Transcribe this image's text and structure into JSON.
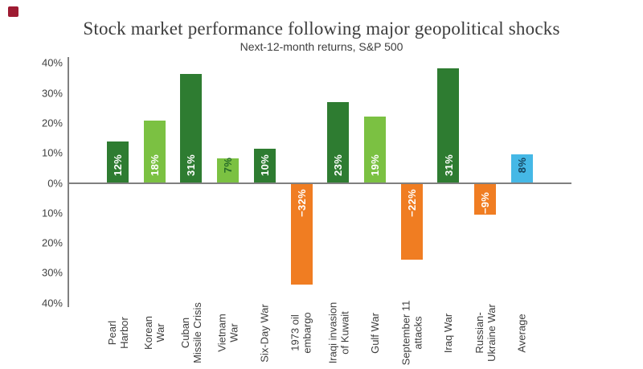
{
  "brand": {
    "logo_color": "#9e1b32"
  },
  "palette": {
    "dark_green": "#2e7c31",
    "light_green": "#7bc142",
    "orange": "#f07d22",
    "blue": "#45b8e6",
    "axis_gray": "#808080",
    "text_gray": "#3d3d3d"
  },
  "chart_data": {
    "type": "bar",
    "title": "Stock market performance following major geopolitical shocks",
    "subtitle": "Next-12-month returns, S&P 500",
    "ylim": [
      -40,
      40
    ],
    "grid": false,
    "legend": false,
    "y_tick_labels": [
      "40%",
      "30%",
      "20%",
      "10%",
      "0%",
      "10%",
      "20%",
      "30%",
      "40%"
    ],
    "y_tick_values": [
      40,
      30,
      20,
      10,
      0,
      -10,
      -20,
      -30,
      -40
    ],
    "categories": [
      "Pearl Harbor",
      "Korean War",
      "Cuban Missile Crisis",
      "Vietnam War",
      "Six-Day War",
      "1973 oil embargo",
      "Iraqi invasion of Kuwait",
      "Gulf War",
      "September 11 attacks",
      "Iraq War",
      "Russian-Ukraine War",
      "Average"
    ],
    "values": [
      12,
      18,
      31,
      7,
      10,
      -32,
      23,
      19,
      -22,
      31,
      -9,
      8
    ],
    "bars": [
      {
        "label_lines": [
          "Pearl",
          "Harbor"
        ],
        "value": 12,
        "value_label": "12%",
        "display_extent_pct": 13.9,
        "color": "dark_green",
        "label_color": "#ffffff"
      },
      {
        "label_lines": [
          "Korean",
          "War"
        ],
        "value": 18,
        "value_label": "18%",
        "display_extent_pct": 20.9,
        "color": "light_green",
        "label_color": "#ffffff"
      },
      {
        "label_lines": [
          "Cuban",
          "Missile Crisis"
        ],
        "value": 31,
        "value_label": "31%",
        "display_extent_pct": 36.2,
        "color": "dark_green",
        "label_color": "#ffffff"
      },
      {
        "label_lines": [
          "Vietnam",
          "War"
        ],
        "value": 7,
        "value_label": "7%",
        "display_extent_pct": 8.2,
        "color": "light_green",
        "label_color": "#266b29"
      },
      {
        "label_lines": [
          "Six-Day War"
        ],
        "value": 10,
        "value_label": "10%",
        "display_extent_pct": 11.5,
        "color": "dark_green",
        "label_color": "#ffffff"
      },
      {
        "label_lines": [
          "1973 oil",
          "embargo"
        ],
        "value": -32,
        "value_label": "−32%",
        "display_extent_pct": -34.0,
        "color": "orange",
        "label_color": "#ffffff"
      },
      {
        "label_lines": [
          "Iraqi invasion",
          "of Kuwait"
        ],
        "value": 23,
        "value_label": "23%",
        "display_extent_pct": 27.0,
        "color": "dark_green",
        "label_color": "#ffffff"
      },
      {
        "label_lines": [
          "Gulf War"
        ],
        "value": 19,
        "value_label": "19%",
        "display_extent_pct": 22.0,
        "color": "light_green",
        "label_color": "#ffffff"
      },
      {
        "label_lines": [
          "September 11",
          "attacks"
        ],
        "value": -22,
        "value_label": "−22%",
        "display_extent_pct": -25.5,
        "color": "orange",
        "label_color": "#ffffff"
      },
      {
        "label_lines": [
          "Iraq War"
        ],
        "value": 31,
        "value_label": "31%",
        "display_extent_pct": 38.3,
        "color": "dark_green",
        "label_color": "#ffffff"
      },
      {
        "label_lines": [
          "Russian-",
          "Ukraine War"
        ],
        "value": -9,
        "value_label": "−9%",
        "display_extent_pct": -10.6,
        "color": "orange",
        "label_color": "#ffffff"
      },
      {
        "label_lines": [
          "Average"
        ],
        "value": 8,
        "value_label": "8%",
        "display_extent_pct": 9.5,
        "color": "blue",
        "label_color": "#17455f"
      }
    ]
  }
}
